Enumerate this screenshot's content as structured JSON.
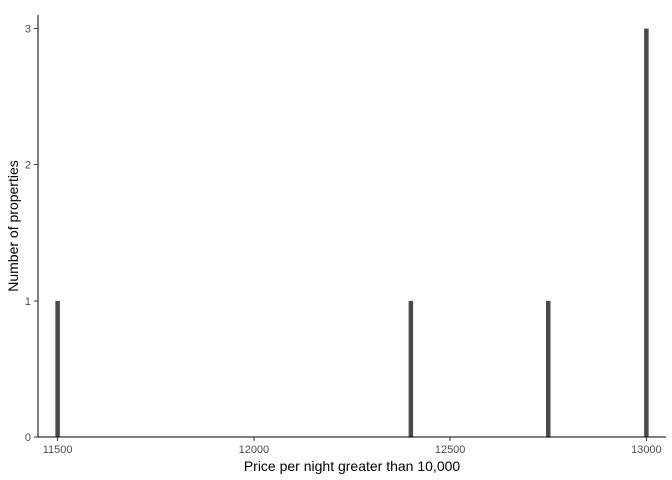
{
  "chart_data": {
    "type": "bar",
    "title": "",
    "xlabel": "Price per night greater than 10,000",
    "ylabel": "Number of properties",
    "xlim": [
      11450,
      13050
    ],
    "ylim": [
      0,
      3.1
    ],
    "x_ticks": [
      11500,
      12000,
      12500,
      13000
    ],
    "y_ticks": [
      0,
      1,
      2,
      3
    ],
    "grid": false,
    "legend": "none",
    "bar_color": "#4a4a4a",
    "series": [
      {
        "x": [
          11500,
          12400,
          12750,
          13000
        ],
        "y": [
          1,
          1,
          1,
          3
        ]
      }
    ]
  }
}
